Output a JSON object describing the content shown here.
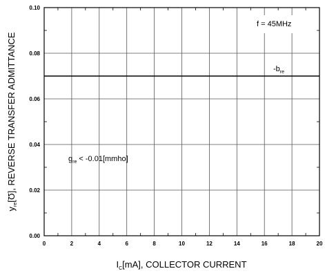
{
  "chart_data": {
    "type": "line",
    "xlabel_main": "I",
    "xlabel_sub": "C",
    "xlabel_rest": "[mA], COLLECTOR CURRENT",
    "ylabel_main": "y",
    "ylabel_sub": "re",
    "ylabel_rest": "[Ʊ], REVERSE TRANSFER ADMITTANCE",
    "xlim": [
      0,
      20
    ],
    "ylim": [
      0,
      0.1
    ],
    "x_ticks": [
      0,
      2,
      4,
      6,
      8,
      10,
      12,
      14,
      16,
      18,
      20
    ],
    "x_tick_labels": [
      "0",
      "2",
      "4",
      "6",
      "8",
      "10",
      "12",
      "14",
      "16",
      "18",
      "20"
    ],
    "y_ticks": [
      0,
      0.02,
      0.04,
      0.06,
      0.08,
      0.1
    ],
    "y_tick_labels": [
      "0.00",
      "0.02",
      "0.04",
      "0.06",
      "0.08",
      "0.10"
    ],
    "grid": true,
    "series": [
      {
        "name": "-b_re",
        "x": [
          0,
          20
        ],
        "y": [
          0.07,
          0.07
        ]
      }
    ],
    "series_label": {
      "main": "-b",
      "sub": "re"
    },
    "condition_label": "f = 45MHz",
    "annotation": {
      "main": "g",
      "sub": "re",
      "rest": " < -0.01[mmho]"
    }
  }
}
